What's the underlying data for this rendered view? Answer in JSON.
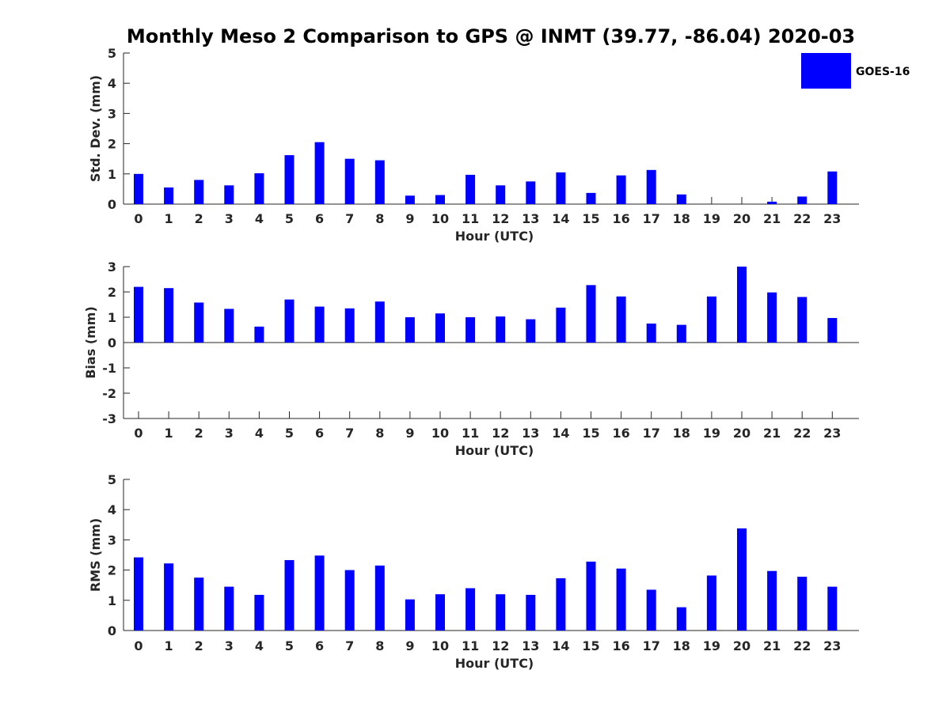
{
  "figure_title": "Monthly Meso 2 Comparison to GPS @ INMT (39.77, -86.04) 2020-03",
  "legend": {
    "label": "GOES-16",
    "color": "#0000ff"
  },
  "chart_data": [
    {
      "type": "bar",
      "categories": [
        "0",
        "1",
        "2",
        "3",
        "4",
        "5",
        "6",
        "7",
        "8",
        "9",
        "10",
        "11",
        "12",
        "13",
        "14",
        "15",
        "16",
        "17",
        "18",
        "19",
        "20",
        "21",
        "22",
        "23"
      ],
      "series": [
        {
          "name": "GOES-16",
          "values": [
            1.0,
            0.55,
            0.8,
            0.62,
            1.02,
            1.62,
            2.05,
            1.5,
            1.45,
            0.28,
            0.3,
            0.97,
            0.62,
            0.75,
            1.05,
            0.37,
            0.95,
            1.13,
            0.32,
            0.0,
            0.0,
            0.08,
            0.25,
            1.08
          ]
        }
      ],
      "xlabel": "Hour (UTC)",
      "ylabel": "Std. Dev. (mm)",
      "ylim": [
        0,
        5
      ],
      "yticks": [
        "0",
        "1",
        "2",
        "3",
        "4",
        "5"
      ],
      "grid": false,
      "legend_position": "top-right"
    },
    {
      "type": "bar",
      "categories": [
        "0",
        "1",
        "2",
        "3",
        "4",
        "5",
        "6",
        "7",
        "8",
        "9",
        "10",
        "11",
        "12",
        "13",
        "14",
        "15",
        "16",
        "17",
        "18",
        "19",
        "20",
        "21",
        "22",
        "23"
      ],
      "series": [
        {
          "name": "GOES-16",
          "values": [
            2.2,
            2.15,
            1.58,
            1.33,
            0.63,
            1.7,
            1.42,
            1.35,
            1.62,
            1.0,
            1.15,
            1.0,
            1.03,
            0.92,
            1.38,
            2.27,
            1.82,
            0.75,
            0.7,
            1.82,
            3.0,
            1.98,
            1.8,
            0.97
          ]
        }
      ],
      "xlabel": "Hour (UTC)",
      "ylabel": "Bias (mm)",
      "ylim": [
        -3,
        3
      ],
      "yticks": [
        "-3",
        "-2",
        "-1",
        "0",
        "1",
        "2",
        "3"
      ],
      "grid": false
    },
    {
      "type": "bar",
      "categories": [
        "0",
        "1",
        "2",
        "3",
        "4",
        "5",
        "6",
        "7",
        "8",
        "9",
        "10",
        "11",
        "12",
        "13",
        "14",
        "15",
        "16",
        "17",
        "18",
        "19",
        "20",
        "21",
        "22",
        "23"
      ],
      "series": [
        {
          "name": "GOES-16",
          "values": [
            2.42,
            2.22,
            1.75,
            1.45,
            1.18,
            2.33,
            2.48,
            2.0,
            2.15,
            1.03,
            1.2,
            1.4,
            1.2,
            1.18,
            1.73,
            2.28,
            2.05,
            1.35,
            0.77,
            1.82,
            3.38,
            1.97,
            1.78,
            1.45
          ]
        }
      ],
      "xlabel": "Hour (UTC)",
      "ylabel": "RMS (mm)",
      "ylim": [
        0,
        5
      ],
      "yticks": [
        "0",
        "1",
        "2",
        "3",
        "4",
        "5"
      ],
      "grid": false
    }
  ]
}
